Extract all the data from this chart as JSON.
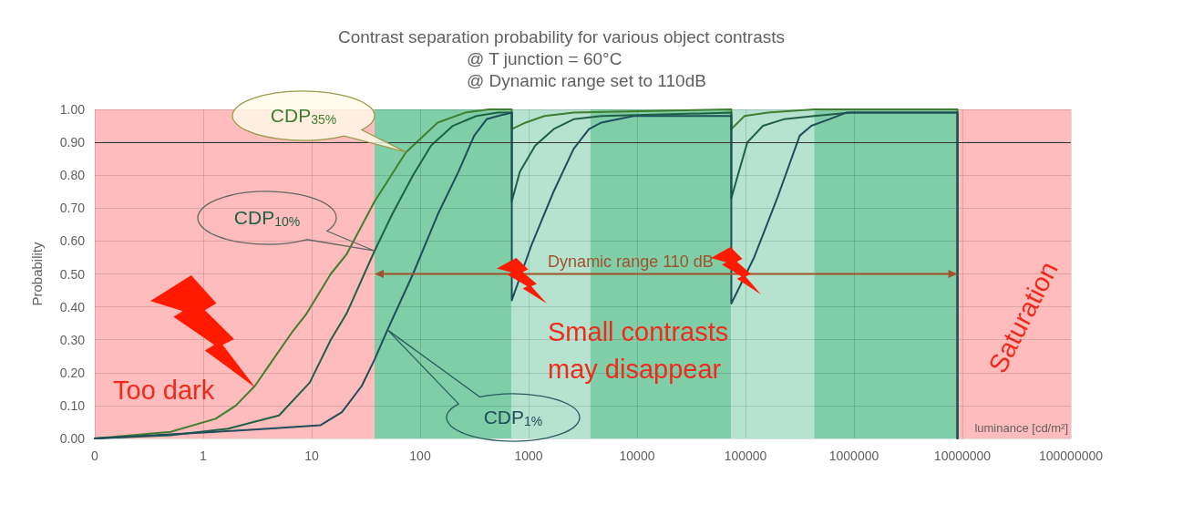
{
  "chart_data": {
    "type": "line",
    "title": "Contrast separation probability for various object contrasts",
    "subtitle": "@ T junction = 60°C\n@ Dynamic range set to 110dB",
    "xlabel": "luminance [cd/m²]",
    "ylabel": "Probability",
    "annotations": [
      "Small contrasts\nmay disappear",
      "Dynamic range 110 dB"
    ],
    "series": [
      {
        "name": "CDP$_{35%}$",
        "color": "#3f7f2f",
        "x": [
          0.1,
          0.5,
          1.3,
          2,
          3,
          4,
          6.5,
          9,
          15,
          21,
          38,
          74,
          93,
          145,
          260,
          430,
          700,
          700,
          940,
          1400,
          2600,
          74000,
          74000,
          98000,
          160000,
          430000,
          9000000,
          9000000
        ],
        "values": [
          0,
          0.02,
          0.06,
          0.1,
          0.16,
          0.22,
          0.32,
          0.38,
          0.5,
          0.56,
          0.72,
          0.87,
          0.9,
          0.96,
          0.99,
          1,
          1,
          0.94,
          0.96,
          0.98,
          0.99,
          1,
          0.94,
          0.98,
          0.99,
          1,
          1,
          0
        ]
      },
      {
        "name": "CDP$_{10%}$",
        "color": "#1f6045",
        "x": [
          0.1,
          0.5,
          1.7,
          5,
          9.6,
          15,
          21,
          38,
          55,
          86,
          126,
          200,
          330,
          520,
          700,
          700,
          830,
          1150,
          1700,
          2600,
          4700,
          74000,
          74000,
          85000,
          104000,
          145000,
          225000,
          430000,
          930000,
          9000000,
          9000000
        ],
        "values": [
          0,
          0.01,
          0.03,
          0.07,
          0.17,
          0.3,
          0.38,
          0.57,
          0.68,
          0.8,
          0.89,
          0.95,
          0.98,
          0.99,
          0.99,
          0.72,
          0.81,
          0.89,
          0.94,
          0.97,
          0.98,
          0.99,
          0.73,
          0.8,
          0.9,
          0.95,
          0.97,
          0.98,
          0.99,
          0.99,
          0
        ]
      },
      {
        "name": "CDP$_{1%}$",
        "color": "#1f4d5c",
        "x": [
          0.1,
          1.3,
          4,
          12,
          19,
          29,
          38,
          50,
          86,
          145,
          225,
          315,
          410,
          520,
          700,
          700,
          1070,
          1700,
          2600,
          3600,
          4700,
          9300,
          74000,
          74000,
          120000,
          196000,
          316000,
          405000,
          590000,
          850000,
          9000000,
          9000000
        ],
        "values": [
          0,
          0.02,
          0.03,
          0.04,
          0.08,
          0.16,
          0.24,
          0.33,
          0.5,
          0.68,
          0.81,
          0.92,
          0.97,
          0.98,
          0.99,
          0.42,
          0.59,
          0.75,
          0.88,
          0.94,
          0.96,
          0.98,
          0.98,
          0.41,
          0.55,
          0.73,
          0.92,
          0.95,
          0.97,
          0.99,
          0.99,
          0
        ]
      }
    ],
    "xlim": [
      0.1,
      100000000
    ],
    "xticks": [
      {
        "value": 0.1,
        "label": "0"
      },
      1,
      10,
      100,
      1000,
      10000,
      100000,
      1000000,
      10000000,
      100000000
    ],
    "ylim": [
      0,
      1
    ],
    "yticks": [
      {
        "value": 0,
        "label": "0.00"
      },
      {
        "value": 0.1,
        "label": "0.10"
      },
      {
        "value": 0.2,
        "label": "0.20"
      },
      {
        "value": 0.3,
        "label": "0.30"
      },
      {
        "value": 0.4,
        "label": "0.40"
      },
      {
        "value": 0.5,
        "label": "0.50"
      },
      {
        "value": 0.6,
        "label": "0.60"
      },
      {
        "value": 0.7,
        "label": "0.70"
      },
      {
        "value": 0.8,
        "label": "0.80"
      },
      {
        "value": 0.9,
        "label": "0.90"
      },
      {
        "value": 1,
        "label": "1.00"
      }
    ],
    "log": "x",
    "grid": true,
    "marker": "none",
    "line_style": "solid",
    "ref_lines": [
      {
        "axis": "y",
        "value": 0.9,
        "color": "#333333"
      }
    ],
    "bands": [
      {
        "axis": "x",
        "from": 0.1,
        "to": 38,
        "label": "Too dark",
        "color": "#ffbcbc"
      },
      {
        "axis": "x",
        "from": 38,
        "to": 700,
        "color": "#7fcea7"
      },
      {
        "axis": "x",
        "from": 700,
        "to": 3700,
        "color": "#b6e3d0"
      },
      {
        "axis": "x",
        "from": 3700,
        "to": 74000,
        "color": "#7fcea7"
      },
      {
        "axis": "x",
        "from": 74000,
        "to": 430000,
        "color": "#b6e3d0"
      },
      {
        "axis": "x",
        "from": 430000,
        "to": 9000000,
        "color": "#7fcea7"
      },
      {
        "axis": "x",
        "from": 9000000,
        "to": 100000000,
        "label": "Saturation",
        "color": "#ffbcbc"
      }
    ]
  }
}
